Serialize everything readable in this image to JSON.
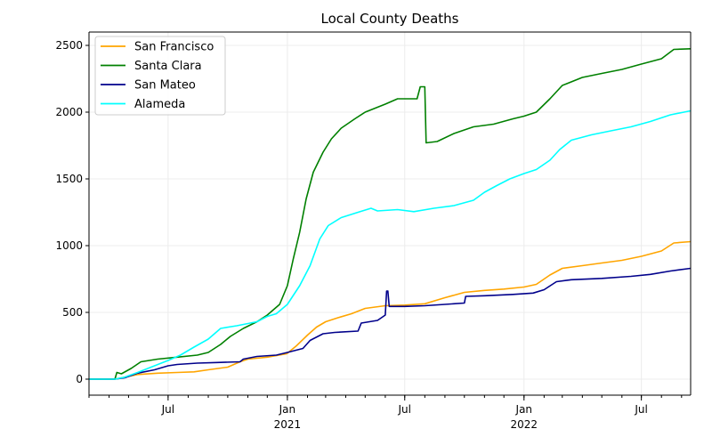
{
  "chart_data": {
    "type": "line",
    "title": "Local County Deaths",
    "xlabel": "",
    "ylabel": "",
    "x_axis": {
      "start": "2020-03-01",
      "end": "2022-09-15",
      "ticks": [
        {
          "date": "2020-07-01",
          "label": "Jul",
          "sub": ""
        },
        {
          "date": "2021-01-01",
          "label": "Jan",
          "sub": "2021"
        },
        {
          "date": "2021-07-01",
          "label": "Jul",
          "sub": ""
        },
        {
          "date": "2022-01-01",
          "label": "Jan",
          "sub": "2022"
        },
        {
          "date": "2022-07-01",
          "label": "Jul",
          "sub": ""
        }
      ]
    },
    "ylim": [
      -120,
      2600
    ],
    "yticks": [
      0,
      500,
      1000,
      1500,
      2000,
      2500
    ],
    "grid": true,
    "legend": "top-left",
    "series": [
      {
        "name": "San Francisco",
        "color": "#ffa500",
        "points": [
          [
            "2020-03-01",
            0
          ],
          [
            "2020-04-10",
            0
          ],
          [
            "2020-04-25",
            15
          ],
          [
            "2020-05-15",
            35
          ],
          [
            "2020-06-15",
            45
          ],
          [
            "2020-07-15",
            50
          ],
          [
            "2020-08-10",
            55
          ],
          [
            "2020-09-01",
            70
          ],
          [
            "2020-10-01",
            90
          ],
          [
            "2020-10-20",
            130
          ],
          [
            "2020-11-01",
            150
          ],
          [
            "2020-12-01",
            165
          ],
          [
            "2020-12-31",
            190
          ],
          [
            "2021-01-15",
            250
          ],
          [
            "2021-02-01",
            330
          ],
          [
            "2021-02-15",
            390
          ],
          [
            "2021-03-01",
            430
          ],
          [
            "2021-03-20",
            460
          ],
          [
            "2021-04-10",
            490
          ],
          [
            "2021-05-01",
            530
          ],
          [
            "2021-06-01",
            550
          ],
          [
            "2021-07-01",
            555
          ],
          [
            "2021-08-01",
            565
          ],
          [
            "2021-09-01",
            610
          ],
          [
            "2021-10-01",
            650
          ],
          [
            "2021-11-01",
            665
          ],
          [
            "2021-12-01",
            675
          ],
          [
            "2022-01-01",
            690
          ],
          [
            "2022-01-20",
            710
          ],
          [
            "2022-02-10",
            780
          ],
          [
            "2022-03-01",
            830
          ],
          [
            "2022-04-01",
            850
          ],
          [
            "2022-05-01",
            870
          ],
          [
            "2022-06-01",
            890
          ],
          [
            "2022-07-01",
            920
          ],
          [
            "2022-08-01",
            960
          ],
          [
            "2022-08-20",
            1020
          ],
          [
            "2022-09-15",
            1030
          ]
        ]
      },
      {
        "name": "Santa Clara",
        "color": "#008000",
        "points": [
          [
            "2020-03-01",
            0
          ],
          [
            "2020-04-10",
            0
          ],
          [
            "2020-04-13",
            50
          ],
          [
            "2020-04-20",
            40
          ],
          [
            "2020-05-05",
            80
          ],
          [
            "2020-05-20",
            130
          ],
          [
            "2020-06-15",
            150
          ],
          [
            "2020-07-15",
            165
          ],
          [
            "2020-08-15",
            180
          ],
          [
            "2020-09-01",
            200
          ],
          [
            "2020-09-20",
            260
          ],
          [
            "2020-10-05",
            320
          ],
          [
            "2020-10-25",
            380
          ],
          [
            "2020-11-15",
            430
          ],
          [
            "2020-12-01",
            480
          ],
          [
            "2020-12-20",
            560
          ],
          [
            "2021-01-01",
            700
          ],
          [
            "2021-01-10",
            900
          ],
          [
            "2021-01-20",
            1100
          ],
          [
            "2021-01-30",
            1350
          ],
          [
            "2021-02-10",
            1550
          ],
          [
            "2021-02-25",
            1700
          ],
          [
            "2021-03-10",
            1800
          ],
          [
            "2021-03-25",
            1880
          ],
          [
            "2021-04-15",
            1950
          ],
          [
            "2021-05-01",
            2000
          ],
          [
            "2021-06-01",
            2060
          ],
          [
            "2021-06-20",
            2100
          ],
          [
            "2021-07-20",
            2100
          ],
          [
            "2021-07-25",
            2190
          ],
          [
            "2021-08-01",
            2190
          ],
          [
            "2021-08-03",
            1770
          ],
          [
            "2021-08-20",
            1780
          ],
          [
            "2021-09-15",
            1840
          ],
          [
            "2021-10-15",
            1890
          ],
          [
            "2021-11-15",
            1910
          ],
          [
            "2021-12-15",
            1950
          ],
          [
            "2022-01-01",
            1970
          ],
          [
            "2022-01-20",
            2000
          ],
          [
            "2022-02-10",
            2100
          ],
          [
            "2022-03-01",
            2200
          ],
          [
            "2022-04-01",
            2260
          ],
          [
            "2022-05-01",
            2290
          ],
          [
            "2022-06-01",
            2320
          ],
          [
            "2022-07-01",
            2360
          ],
          [
            "2022-08-01",
            2400
          ],
          [
            "2022-08-20",
            2470
          ],
          [
            "2022-09-15",
            2475
          ]
        ]
      },
      {
        "name": "San Mateo",
        "color": "#00008b",
        "points": [
          [
            "2020-03-01",
            0
          ],
          [
            "2020-04-10",
            0
          ],
          [
            "2020-04-25",
            10
          ],
          [
            "2020-05-15",
            45
          ],
          [
            "2020-06-10",
            70
          ],
          [
            "2020-07-01",
            100
          ],
          [
            "2020-07-15",
            110
          ],
          [
            "2020-08-15",
            120
          ],
          [
            "2020-09-15",
            125
          ],
          [
            "2020-10-20",
            130
          ],
          [
            "2020-10-25",
            150
          ],
          [
            "2020-11-15",
            170
          ],
          [
            "2020-12-15",
            180
          ],
          [
            "2021-01-01",
            200
          ],
          [
            "2021-01-25",
            230
          ],
          [
            "2021-02-05",
            290
          ],
          [
            "2021-02-25",
            340
          ],
          [
            "2021-03-15",
            350
          ],
          [
            "2021-04-20",
            360
          ],
          [
            "2021-04-25",
            420
          ],
          [
            "2021-05-20",
            440
          ],
          [
            "2021-06-01",
            480
          ],
          [
            "2021-06-03",
            660
          ],
          [
            "2021-06-05",
            660
          ],
          [
            "2021-06-07",
            545
          ],
          [
            "2021-07-01",
            545
          ],
          [
            "2021-08-01",
            550
          ],
          [
            "2021-09-01",
            560
          ],
          [
            "2021-10-01",
            570
          ],
          [
            "2021-10-03",
            620
          ],
          [
            "2021-11-01",
            625
          ],
          [
            "2021-12-15",
            635
          ],
          [
            "2022-01-15",
            645
          ],
          [
            "2022-02-01",
            670
          ],
          [
            "2022-02-20",
            730
          ],
          [
            "2022-03-15",
            745
          ],
          [
            "2022-05-01",
            755
          ],
          [
            "2022-06-15",
            770
          ],
          [
            "2022-07-15",
            785
          ],
          [
            "2022-08-15",
            810
          ],
          [
            "2022-09-15",
            830
          ]
        ]
      },
      {
        "name": "Alameda",
        "color": "#00ffff",
        "points": [
          [
            "2020-03-01",
            0
          ],
          [
            "2020-04-10",
            0
          ],
          [
            "2020-04-25",
            15
          ],
          [
            "2020-05-15",
            50
          ],
          [
            "2020-06-10",
            100
          ],
          [
            "2020-07-01",
            140
          ],
          [
            "2020-07-20",
            180
          ],
          [
            "2020-08-10",
            240
          ],
          [
            "2020-09-01",
            300
          ],
          [
            "2020-09-20",
            380
          ],
          [
            "2020-10-15",
            400
          ],
          [
            "2020-11-15",
            430
          ],
          [
            "2020-12-01",
            470
          ],
          [
            "2020-12-15",
            490
          ],
          [
            "2021-01-01",
            560
          ],
          [
            "2021-01-20",
            700
          ],
          [
            "2021-02-05",
            850
          ],
          [
            "2021-02-20",
            1050
          ],
          [
            "2021-03-05",
            1150
          ],
          [
            "2021-03-25",
            1210
          ],
          [
            "2021-04-20",
            1250
          ],
          [
            "2021-05-10",
            1280
          ],
          [
            "2021-05-20",
            1260
          ],
          [
            "2021-06-20",
            1270
          ],
          [
            "2021-07-15",
            1255
          ],
          [
            "2021-08-15",
            1280
          ],
          [
            "2021-09-15",
            1300
          ],
          [
            "2021-10-15",
            1340
          ],
          [
            "2021-11-01",
            1400
          ],
          [
            "2021-11-20",
            1450
          ],
          [
            "2021-12-10",
            1500
          ],
          [
            "2022-01-01",
            1540
          ],
          [
            "2022-01-20",
            1570
          ],
          [
            "2022-02-10",
            1640
          ],
          [
            "2022-02-25",
            1720
          ],
          [
            "2022-03-15",
            1790
          ],
          [
            "2022-04-15",
            1830
          ],
          [
            "2022-05-15",
            1860
          ],
          [
            "2022-06-15",
            1890
          ],
          [
            "2022-07-15",
            1930
          ],
          [
            "2022-08-15",
            1980
          ],
          [
            "2022-09-15",
            2010
          ]
        ]
      }
    ]
  }
}
